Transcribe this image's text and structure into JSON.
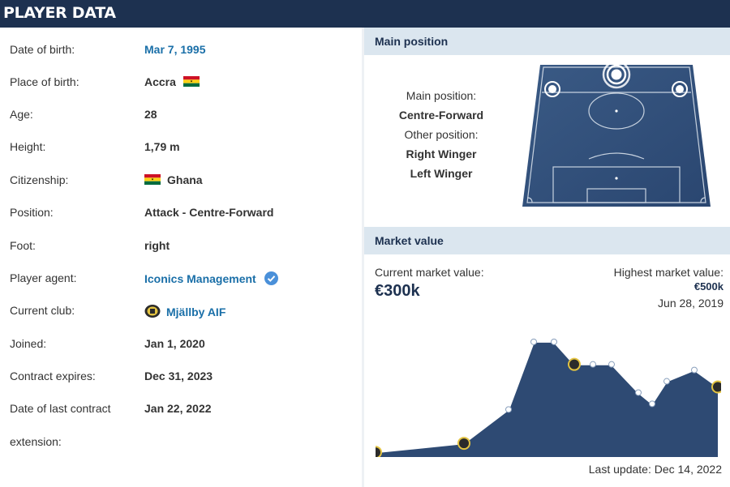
{
  "header": {
    "title": "PLAYER DATA"
  },
  "player_data": {
    "rows": [
      {
        "label": "Date of birth:",
        "value": "Mar 7, 1995",
        "link": true
      },
      {
        "label": "Place of birth:",
        "value": "Accra",
        "flag": "ghana-flag"
      },
      {
        "label": "Age:",
        "value": "28"
      },
      {
        "label": "Height:",
        "value": "1,79 m"
      },
      {
        "label": "Citizenship:",
        "value": "Ghana",
        "flag": "ghana-flag"
      },
      {
        "label": "Position:",
        "value": "Attack - Centre-Forward"
      },
      {
        "label": "Foot:",
        "value": "right"
      },
      {
        "label": "Player agent:",
        "value": "Iconics Management",
        "link": true,
        "icon": "verified-check-icon"
      },
      {
        "label": "Current club:",
        "value": "Mjällby AIF",
        "link": true,
        "icon": "club-crest-icon"
      },
      {
        "label": "Joined:",
        "value": "Jan 1, 2020"
      },
      {
        "label": "Contract expires:",
        "value": "Dec 31, 2023"
      },
      {
        "label": "Date of last contract",
        "value": "Jan 22, 2022"
      }
    ],
    "last_label_continuation": "extension:"
  },
  "main_position": {
    "title": "Main position",
    "main_label": "Main position:",
    "main_value": "Centre-Forward",
    "other_label": "Other position:",
    "other_values": [
      "Right Winger",
      "Left Winger"
    ],
    "pitch_color": "#2e4a73"
  },
  "market_value": {
    "title": "Market value",
    "current_label": "Current market value:",
    "current_value": "€300k",
    "highest_label": "Highest market value:",
    "highest_value": "€500k",
    "highest_date": "Jun 28, 2019",
    "last_update": "Last update: Dec 14, 2022",
    "area_color": "#2e4a73",
    "chart_data": {
      "type": "area",
      "series": [
        {
          "values": [
            10,
            50,
            200,
            500,
            500,
            400,
            400,
            400,
            275,
            225,
            325,
            375,
            300
          ]
        }
      ],
      "point_markers": [
        "club-crest-icon",
        "club-crest-icon",
        null,
        null,
        null,
        "club-crest-icon",
        null,
        null,
        null,
        null,
        null,
        null,
        "club-crest-icon"
      ],
      "ylim": [
        0,
        600
      ],
      "grid": false
    }
  }
}
